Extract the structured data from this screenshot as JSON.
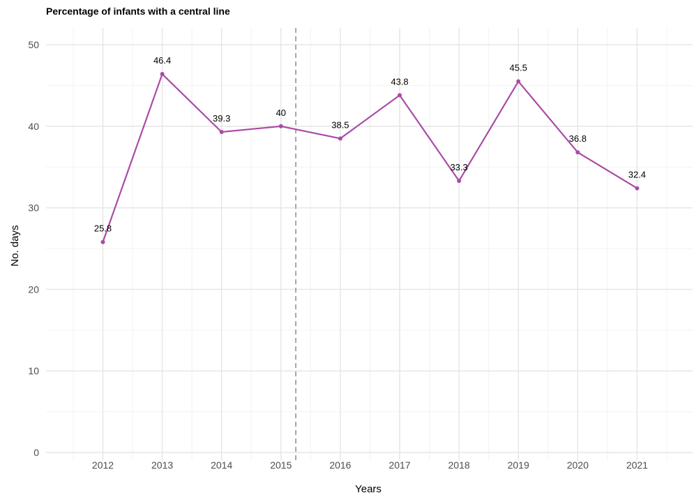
{
  "chart_data": {
    "type": "line",
    "title": "Percentage of infants with a central line",
    "xlabel": "Years",
    "ylabel": "No. days",
    "x": [
      2012,
      2013,
      2014,
      2015,
      2016,
      2017,
      2018,
      2019,
      2020,
      2021
    ],
    "series": [
      {
        "values": [
          25.8,
          46.4,
          39.3,
          40,
          38.5,
          43.8,
          33.3,
          45.5,
          36.8,
          32.4
        ]
      }
    ],
    "data_labels": [
      "25.8",
      "46.4",
      "39.3",
      "40",
      "38.5",
      "43.8",
      "33.3",
      "45.5",
      "36.8",
      "32.4"
    ],
    "ylim": [
      0,
      50
    ],
    "yticks": [
      0,
      10,
      20,
      30,
      40,
      50
    ],
    "xticks": [
      2012,
      2013,
      2014,
      2015,
      2016,
      2017,
      2018,
      2019,
      2020,
      2021
    ],
    "xlim": [
      2011.05,
      2021.95
    ],
    "vline": {
      "x": 2015.25,
      "style": "dashed",
      "color": "#a6a6a6"
    },
    "series_color": "#a94ca5",
    "grid": true,
    "legend": "none"
  }
}
